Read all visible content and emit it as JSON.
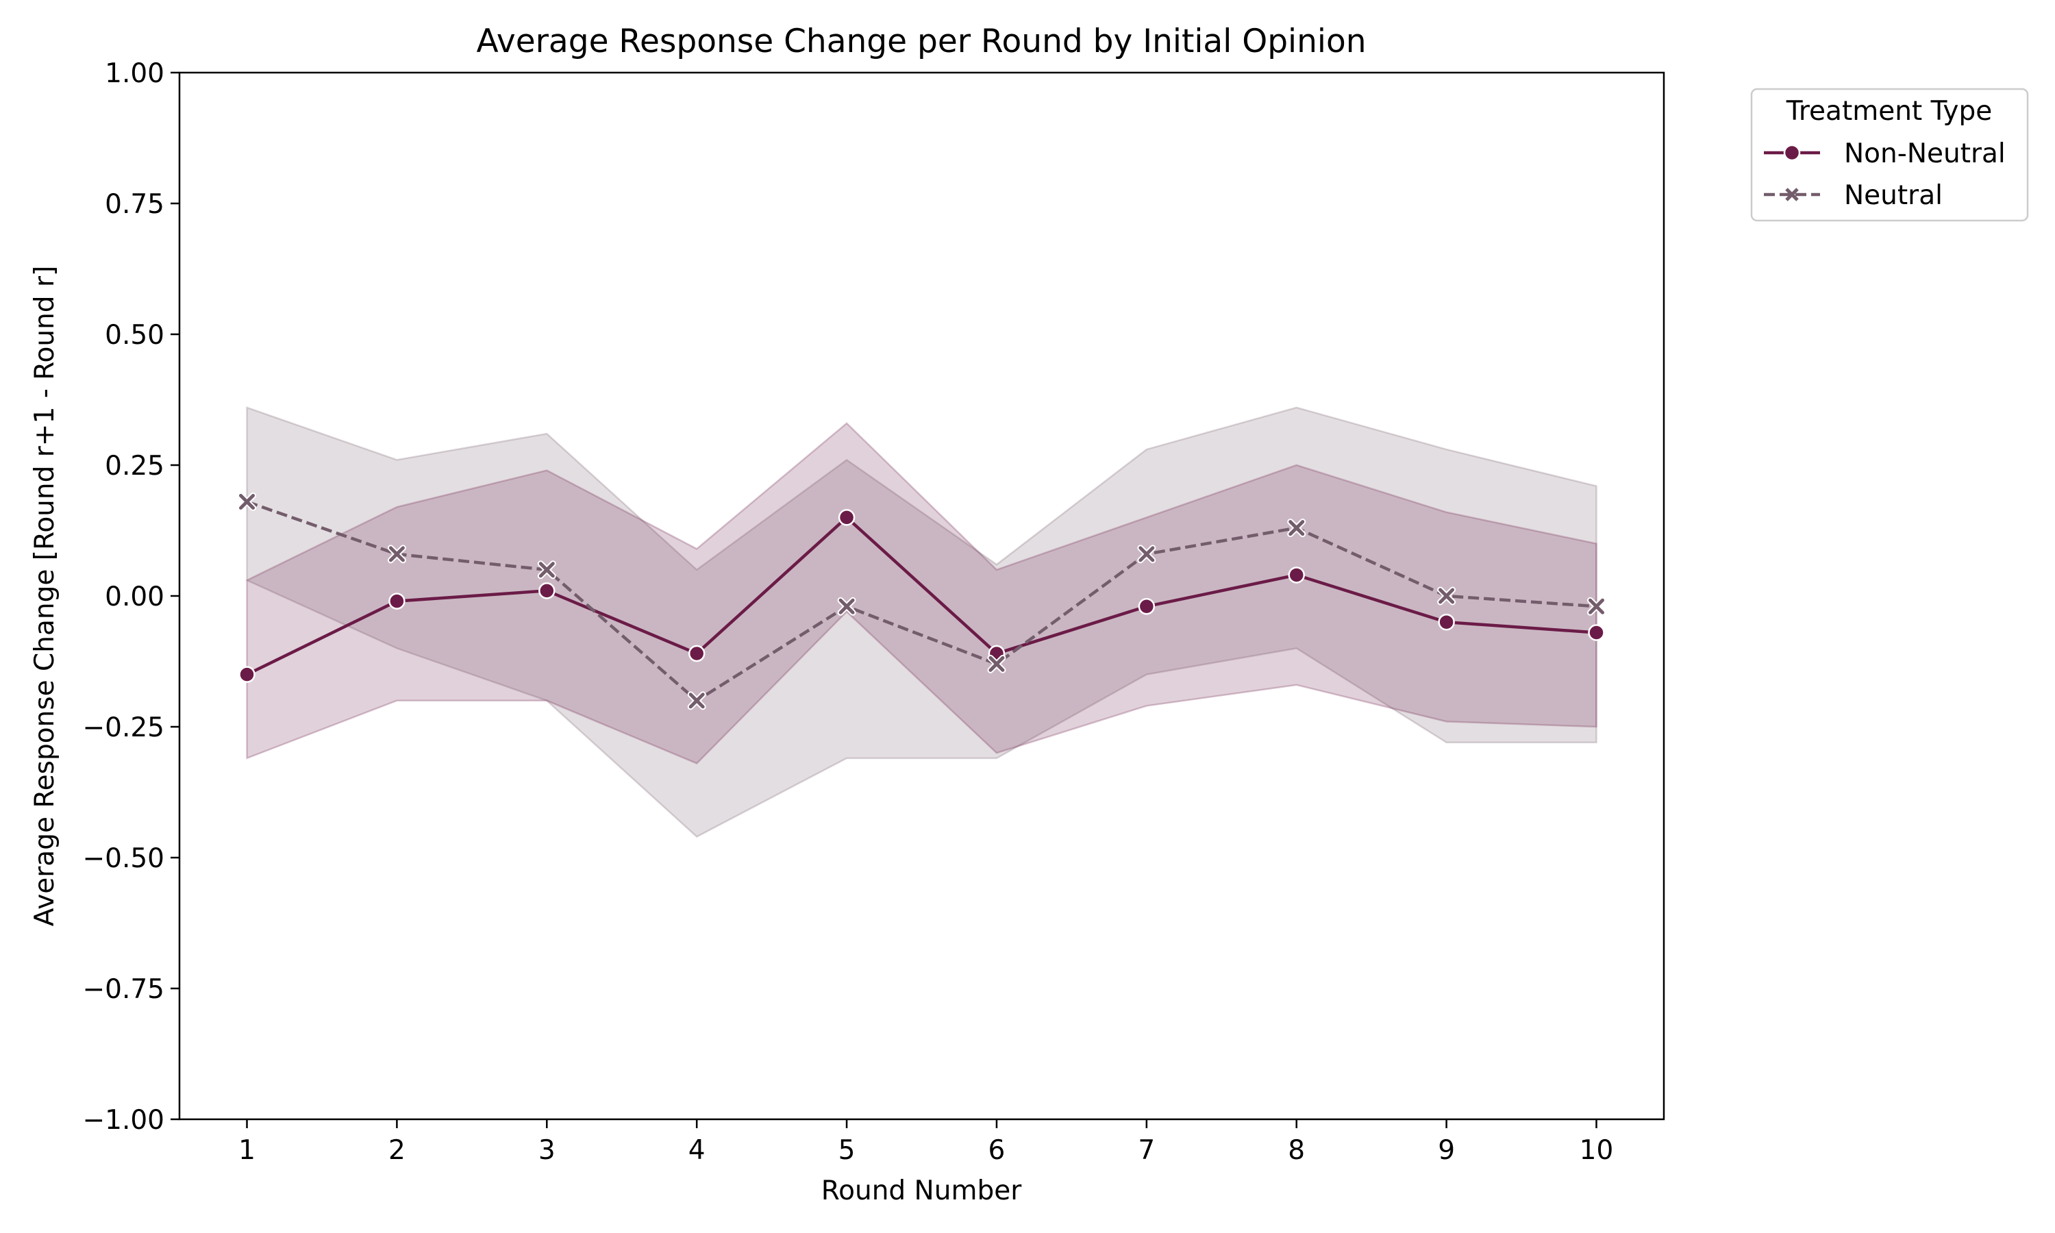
{
  "chart_data": {
    "type": "line",
    "title": "Average Response Change per Round by Initial Opinion",
    "xlabel": "Round Number",
    "ylabel": "Average Response Change [Round r+1 - Round r]",
    "x": [
      1,
      2,
      3,
      4,
      5,
      6,
      7,
      8,
      9,
      10
    ],
    "xlim": [
      0.55,
      10.45
    ],
    "ylim": [
      -1.0,
      1.0
    ],
    "yticks": [
      -1.0,
      -0.75,
      -0.5,
      -0.25,
      0.0,
      0.25,
      0.5,
      0.75,
      1.0
    ],
    "ytick_labels": [
      "−1.00",
      "−0.75",
      "−0.50",
      "−0.25",
      "0.00",
      "0.25",
      "0.50",
      "0.75",
      "1.00"
    ],
    "xtick_labels": [
      "1",
      "2",
      "3",
      "4",
      "5",
      "6",
      "7",
      "8",
      "9",
      "10"
    ],
    "grid": false,
    "legend": {
      "title": "Treatment Type",
      "placement": "outside-top-right"
    },
    "series": [
      {
        "name": "Non-Neutral",
        "color": "#6b1b47",
        "marker": "circle",
        "linestyle": "solid",
        "values": [
          -0.15,
          -0.01,
          0.01,
          -0.11,
          0.15,
          -0.11,
          -0.02,
          0.04,
          -0.05,
          -0.07
        ],
        "ci_lower": [
          -0.31,
          -0.2,
          -0.2,
          -0.32,
          -0.03,
          -0.3,
          -0.21,
          -0.17,
          -0.24,
          -0.25
        ],
        "ci_upper": [
          0.03,
          0.17,
          0.24,
          0.09,
          0.33,
          0.05,
          0.15,
          0.25,
          0.16,
          0.1
        ]
      },
      {
        "name": "Neutral",
        "color": "#735c6b",
        "marker": "x",
        "linestyle": "dashed",
        "values": [
          0.18,
          0.08,
          0.05,
          -0.2,
          -0.02,
          -0.13,
          0.08,
          0.13,
          0.0,
          -0.02
        ],
        "ci_lower": [
          0.03,
          -0.1,
          -0.2,
          -0.46,
          -0.31,
          -0.31,
          -0.15,
          -0.1,
          -0.28,
          -0.28
        ],
        "ci_upper": [
          0.36,
          0.26,
          0.31,
          0.05,
          0.26,
          0.06,
          0.28,
          0.36,
          0.28,
          0.21
        ]
      }
    ]
  }
}
